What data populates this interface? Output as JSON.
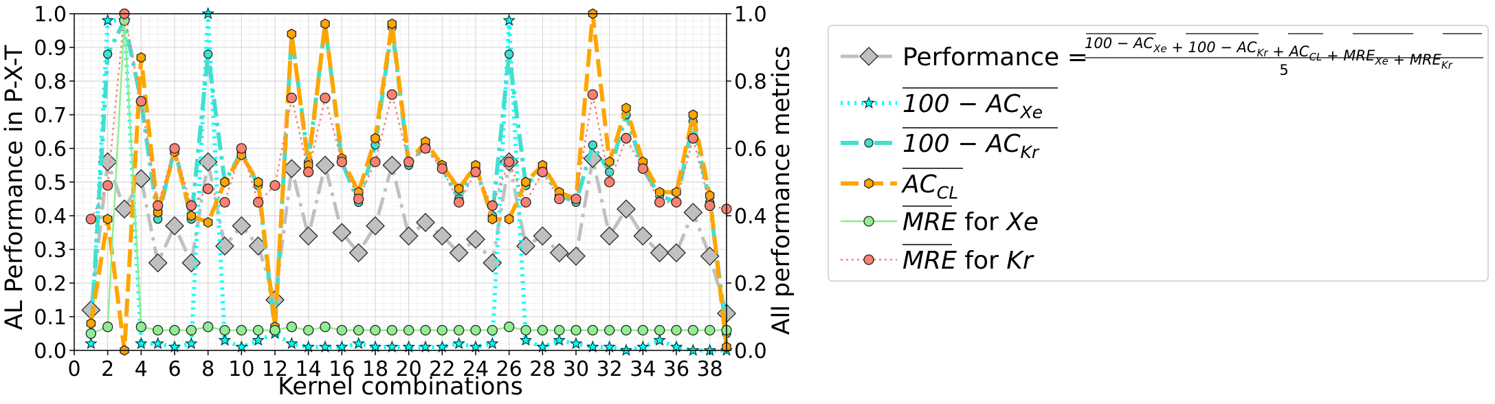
{
  "chart_data": {
    "type": "line",
    "xlabel": "Kernel combinations",
    "ylabel_left": "AL Performance in P-X-T",
    "ylabel_right": "All performance metrics",
    "xlim": [
      0,
      39
    ],
    "ylim_left": [
      0,
      1
    ],
    "ylim_right": [
      0,
      1
    ],
    "x_ticks": [
      0,
      2,
      4,
      6,
      8,
      10,
      12,
      14,
      16,
      18,
      20,
      22,
      24,
      26,
      28,
      30,
      32,
      34,
      36,
      38
    ],
    "y_ticks_left": [
      "0.0",
      "0.1",
      "0.2",
      "0.3",
      "0.4",
      "0.5",
      "0.6",
      "0.7",
      "0.8",
      "0.9",
      "1.0"
    ],
    "y_ticks_right": [
      "0.0",
      "0.2",
      "0.4",
      "0.6",
      "0.8",
      "1.0"
    ],
    "grid": "minor and major on",
    "legend_position": "outside right",
    "x": [
      1,
      2,
      3,
      4,
      5,
      6,
      7,
      8,
      9,
      10,
      11,
      12,
      13,
      14,
      15,
      16,
      17,
      18,
      19,
      20,
      21,
      22,
      23,
      24,
      25,
      26,
      27,
      28,
      29,
      30,
      31,
      32,
      33,
      34,
      35,
      36,
      37,
      38,
      39
    ],
    "series": [
      {
        "name": "Performance",
        "legend_math": {
          "num": [
            "100 − AC",
            "Xe",
            "100 − AC",
            "Kr",
            "AC",
            "CL",
            "MRE",
            "Xe",
            "MRE",
            "Kr"
          ],
          "den": "5"
        },
        "axis": "left",
        "color": "#c0c0c0",
        "marker": "diamond",
        "marker_face": "#c0c0c0",
        "style": "dashdot",
        "values": [
          0.12,
          0.56,
          0.42,
          0.51,
          0.26,
          0.37,
          0.26,
          0.56,
          0.31,
          0.37,
          0.31,
          0.15,
          0.54,
          0.34,
          0.55,
          0.35,
          0.29,
          0.37,
          0.55,
          0.34,
          0.38,
          0.34,
          0.29,
          0.33,
          0.26,
          0.56,
          0.31,
          0.34,
          0.29,
          0.28,
          0.57,
          0.34,
          0.42,
          0.34,
          0.29,
          0.29,
          0.41,
          0.28,
          0.11
        ]
      },
      {
        "name": "100 − AC Xe",
        "legend_main": "100 − AC",
        "legend_sub": "Xe",
        "axis": "right",
        "color": "#00ffff",
        "marker": "star",
        "marker_face": "#00ffff",
        "style": "dotted",
        "values": [
          0.02,
          0.98,
          0.98,
          0.02,
          0.02,
          0.01,
          0.02,
          1.0,
          0.03,
          0.01,
          0.03,
          0.05,
          0.02,
          0.01,
          0.01,
          0.01,
          0.02,
          0.01,
          0.01,
          0.01,
          0.01,
          0.01,
          0.02,
          0.01,
          0.02,
          0.98,
          0.03,
          0.01,
          0.03,
          0.02,
          0.01,
          0.01,
          0.0,
          0.01,
          0.03,
          0.01,
          0.0,
          0.0,
          0.0
        ]
      },
      {
        "name": "100 − AC Kr",
        "legend_main": "100 − AC",
        "legend_sub": "Kr",
        "axis": "right",
        "color": "#40e0d0",
        "marker": "circle",
        "marker_face": "#40e0d0",
        "style": "dashdot",
        "values": [
          0.05,
          0.88,
          0.98,
          0.74,
          0.39,
          0.6,
          0.39,
          0.88,
          0.5,
          0.59,
          0.49,
          0.06,
          0.94,
          0.56,
          0.97,
          0.56,
          0.44,
          0.61,
          0.96,
          0.55,
          0.61,
          0.54,
          0.45,
          0.54,
          0.4,
          0.88,
          0.49,
          0.54,
          0.46,
          0.44,
          0.61,
          0.53,
          0.7,
          0.54,
          0.46,
          0.44,
          0.68,
          0.44,
          0.05
        ]
      },
      {
        "name": "AC CL",
        "legend_main": "AC",
        "legend_sub": "CL",
        "axis": "right",
        "color": "#ffa500",
        "marker": "hexagon",
        "marker_face": "#ffa500",
        "style": "dashed",
        "values": [
          0.08,
          0.39,
          0.0,
          0.87,
          0.41,
          0.59,
          0.4,
          0.38,
          0.5,
          0.58,
          0.5,
          0.07,
          0.94,
          0.55,
          0.97,
          0.57,
          0.47,
          0.63,
          0.97,
          0.56,
          0.62,
          0.55,
          0.48,
          0.55,
          0.39,
          0.39,
          0.5,
          0.55,
          0.47,
          0.45,
          1.0,
          0.56,
          0.72,
          0.56,
          0.47,
          0.47,
          0.7,
          0.46,
          0.01
        ]
      },
      {
        "name": "MRE for Xe",
        "legend_main": "MRE",
        "legend_suffix": " for ",
        "legend_tail": "Xe",
        "axis": "right",
        "color": "#90ee90",
        "marker": "circle",
        "marker_face": "#90ee90",
        "style": "solid",
        "values": [
          0.05,
          0.07,
          0.98,
          0.07,
          0.06,
          0.06,
          0.06,
          0.07,
          0.06,
          0.06,
          0.06,
          0.06,
          0.07,
          0.06,
          0.07,
          0.06,
          0.06,
          0.06,
          0.06,
          0.06,
          0.06,
          0.06,
          0.06,
          0.06,
          0.06,
          0.07,
          0.06,
          0.06,
          0.06,
          0.06,
          0.06,
          0.06,
          0.06,
          0.06,
          0.06,
          0.06,
          0.06,
          0.06,
          0.06
        ]
      },
      {
        "name": "MRE for Kr",
        "legend_main": "MRE",
        "legend_suffix": " for ",
        "legend_tail": "Kr",
        "axis": "right",
        "color": "#fa8072",
        "marker": "circle",
        "marker_face": "#fa8072",
        "style": "dotted",
        "values": [
          0.39,
          0.49,
          1.0,
          0.74,
          0.43,
          0.6,
          0.43,
          0.48,
          0.44,
          0.6,
          0.44,
          0.49,
          0.75,
          0.53,
          0.75,
          0.56,
          0.45,
          0.56,
          0.76,
          0.56,
          0.6,
          0.54,
          0.44,
          0.53,
          0.43,
          0.56,
          0.44,
          0.53,
          0.45,
          0.45,
          0.76,
          0.5,
          0.63,
          0.54,
          0.44,
          0.44,
          0.63,
          0.43,
          0.42
        ]
      }
    ]
  }
}
